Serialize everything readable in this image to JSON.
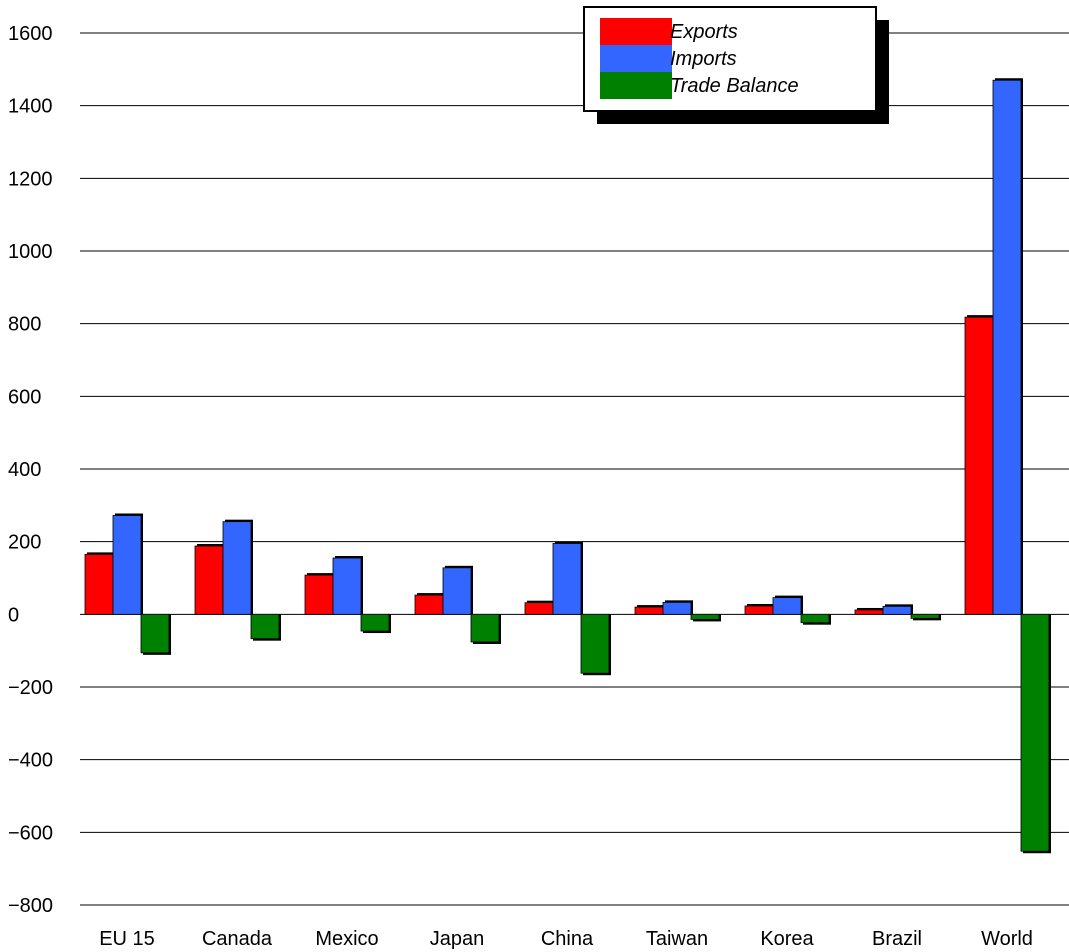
{
  "chart_data": {
    "type": "bar",
    "categories": [
      "EU 15",
      "Canada",
      "Mexico",
      "Japan",
      "China",
      "Taiwan",
      "Korea",
      "Brazil",
      "World"
    ],
    "series": [
      {
        "name": "Exports",
        "color": "#ff0000",
        "values": [
          165,
          188,
          108,
          53,
          32,
          20,
          23,
          12,
          818
        ]
      },
      {
        "name": "Imports",
        "color": "#3366ff",
        "values": [
          272,
          255,
          155,
          128,
          195,
          33,
          46,
          22,
          1470
        ]
      },
      {
        "name": "Trade Balance",
        "color": "#008000",
        "values": [
          -106,
          -67,
          -46,
          -76,
          -162,
          -14,
          -23,
          -11,
          -652
        ]
      }
    ],
    "y_ticks": [
      "1600",
      "1400",
      "1200",
      "1000",
      "800",
      "600",
      "400",
      "200",
      "0",
      "−200",
      "−400",
      "−600",
      "−800"
    ],
    "ylim": [
      -800,
      1600
    ],
    "grid": true,
    "legend": "top-center"
  }
}
